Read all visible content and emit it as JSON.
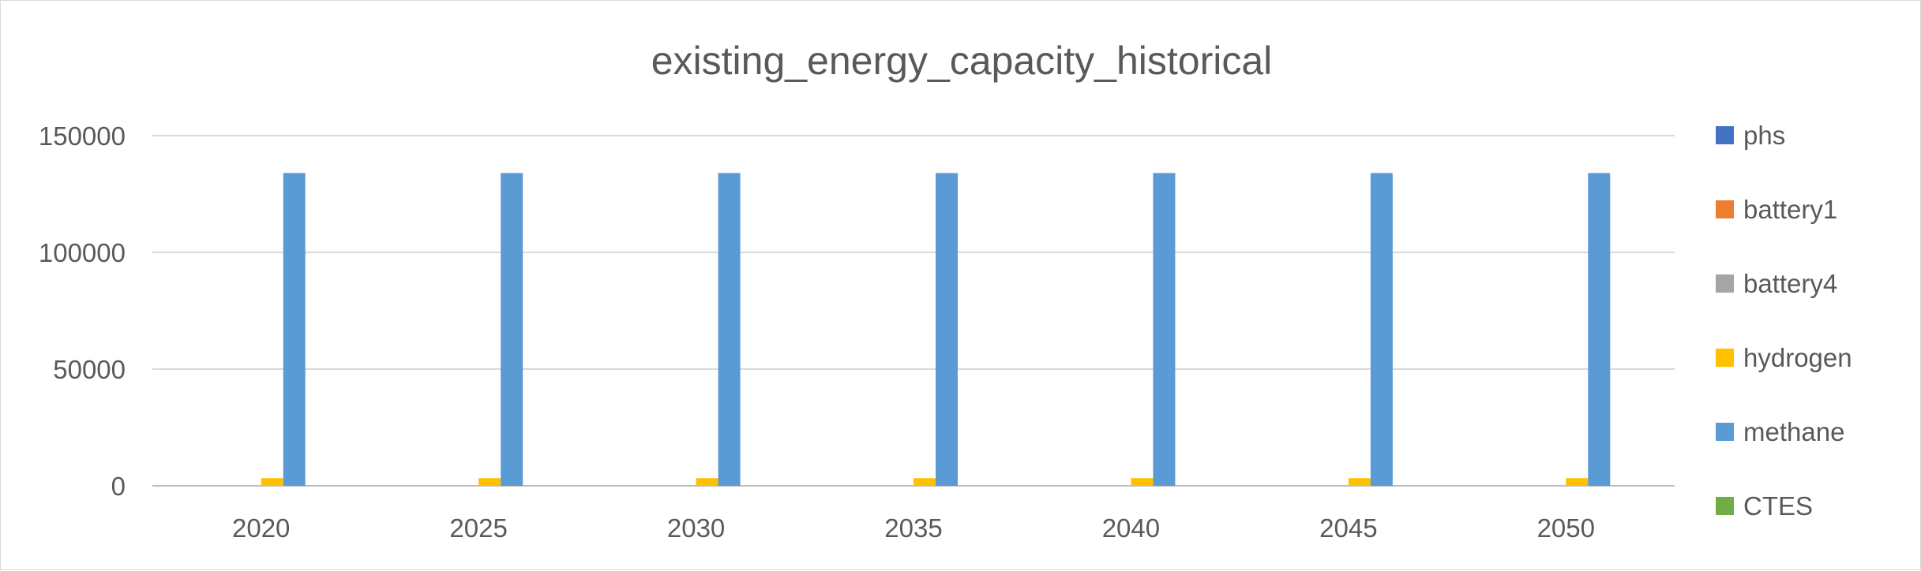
{
  "chart_data": {
    "type": "bar",
    "title": "existing_energy_capacity_historical",
    "xlabel": "",
    "ylabel": "",
    "categories": [
      "2020",
      "2025",
      "2030",
      "2035",
      "2040",
      "2045",
      "2050"
    ],
    "ylim": [
      0,
      150000
    ],
    "yticks": [
      "0",
      "50000",
      "100000",
      "150000"
    ],
    "grid": true,
    "legend_position": "right",
    "series": [
      {
        "name": "phs",
        "color": "#4472C4",
        "values": [
          0,
          0,
          0,
          0,
          0,
          0,
          0
        ]
      },
      {
        "name": "battery1",
        "color": "#ED7D31",
        "values": [
          0,
          0,
          0,
          0,
          0,
          0,
          0
        ]
      },
      {
        "name": "battery4",
        "color": "#A5A5A5",
        "values": [
          0,
          0,
          0,
          0,
          0,
          0,
          0
        ]
      },
      {
        "name": "hydrogen",
        "color": "#FFC000",
        "values": [
          3300,
          3300,
          3300,
          3300,
          3300,
          3300,
          3300
        ]
      },
      {
        "name": "methane",
        "color": "#5B9BD5",
        "values": [
          134000,
          134000,
          134000,
          134000,
          134000,
          134000,
          134000
        ]
      },
      {
        "name": "CTES",
        "color": "#70AD47",
        "values": [
          0,
          0,
          0,
          0,
          0,
          0,
          0
        ]
      }
    ]
  }
}
